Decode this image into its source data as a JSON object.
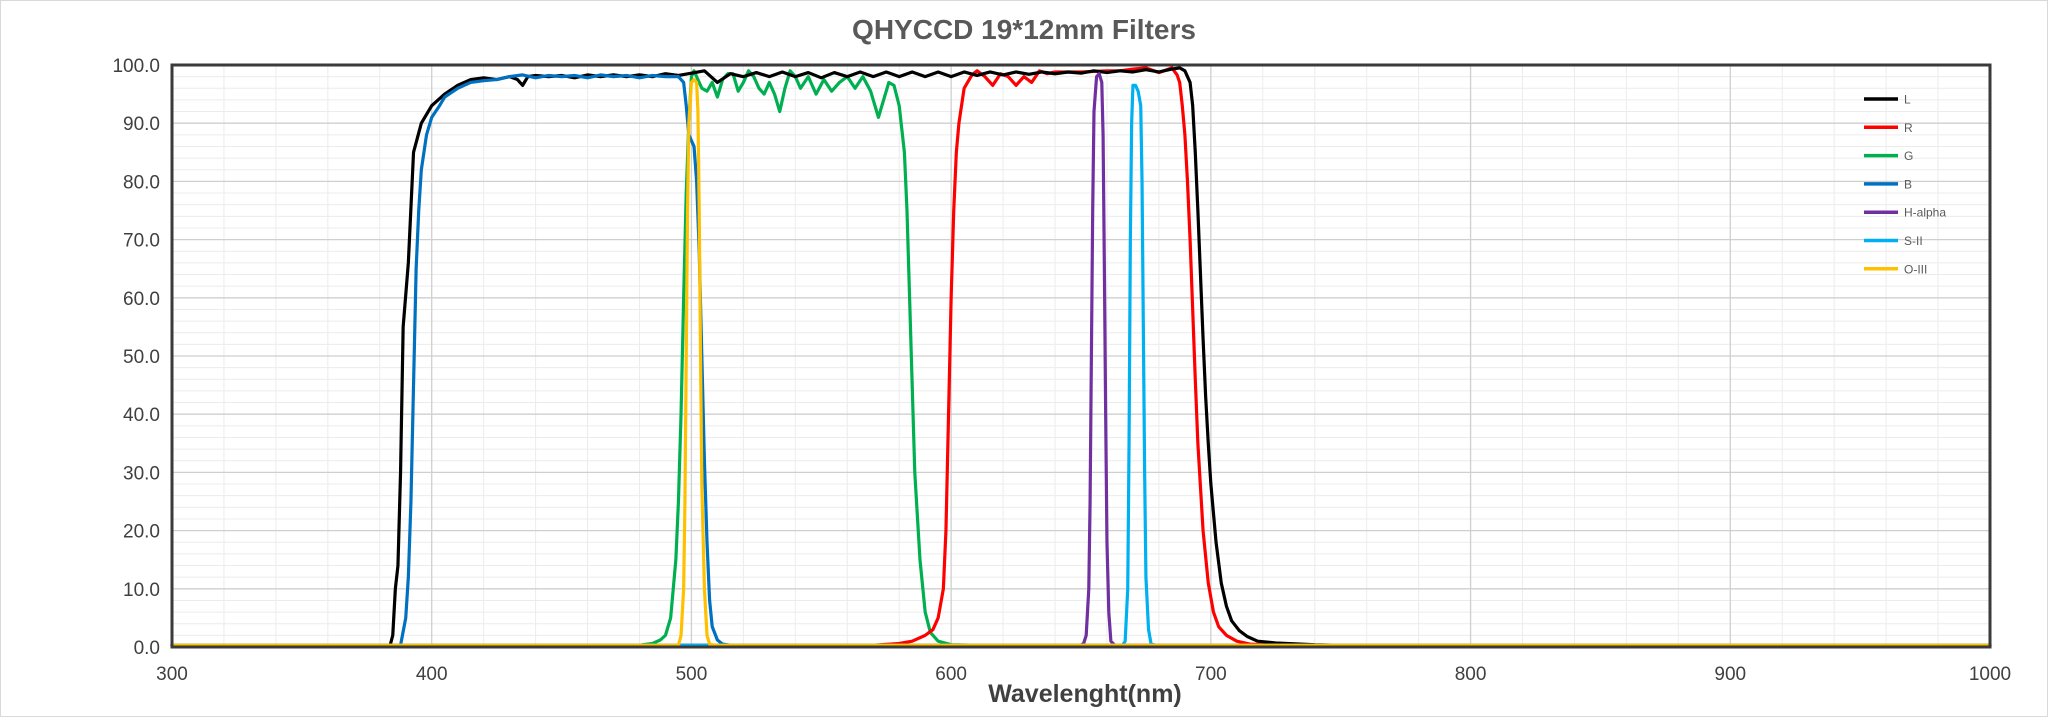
{
  "chart_data": {
    "type": "line",
    "title": "QHYCCD 19*12mm Filters",
    "xlabel": "Wavelenght(nm)",
    "ylabel": "",
    "xlim": [
      300,
      1000
    ],
    "ylim": [
      0,
      100
    ],
    "x_ticks": [
      "300",
      "400",
      "500",
      "600",
      "700",
      "800",
      "900",
      "1000"
    ],
    "y_ticks": [
      "0.0",
      "10.0",
      "20.0",
      "30.0",
      "40.0",
      "50.0",
      "60.0",
      "70.0",
      "80.0",
      "90.0",
      "100.0"
    ],
    "grid": "major and minor",
    "legend_position": "top-right",
    "series": [
      {
        "name": "L",
        "color": "#000000",
        "points": [
          [
            300,
            0.3
          ],
          [
            384,
            0.3
          ],
          [
            385,
            2
          ],
          [
            386,
            10
          ],
          [
            387,
            14
          ],
          [
            388,
            30
          ],
          [
            389,
            55
          ],
          [
            391,
            66
          ],
          [
            393,
            85
          ],
          [
            396,
            90
          ],
          [
            400,
            93
          ],
          [
            405,
            95
          ],
          [
            410,
            96.5
          ],
          [
            415,
            97.5
          ],
          [
            420,
            97.8
          ],
          [
            425,
            97.5
          ],
          [
            430,
            98
          ],
          [
            433,
            97.5
          ],
          [
            435,
            96.5
          ],
          [
            437,
            98
          ],
          [
            440,
            98.2
          ],
          [
            445,
            98
          ],
          [
            450,
            98.2
          ],
          [
            455,
            97.8
          ],
          [
            460,
            98.3
          ],
          [
            465,
            98
          ],
          [
            470,
            98.3
          ],
          [
            475,
            98
          ],
          [
            480,
            98.3
          ],
          [
            485,
            98
          ],
          [
            490,
            98.5
          ],
          [
            495,
            98.2
          ],
          [
            500,
            98.6
          ],
          [
            505,
            99
          ],
          [
            510,
            97
          ],
          [
            515,
            98.5
          ],
          [
            520,
            98
          ],
          [
            525,
            98.7
          ],
          [
            530,
            98
          ],
          [
            535,
            98.8
          ],
          [
            540,
            98
          ],
          [
            545,
            98.7
          ],
          [
            550,
            97.8
          ],
          [
            555,
            98.7
          ],
          [
            560,
            98
          ],
          [
            565,
            98.8
          ],
          [
            570,
            98
          ],
          [
            575,
            98.8
          ],
          [
            580,
            98
          ],
          [
            585,
            98.8
          ],
          [
            590,
            98
          ],
          [
            595,
            98.8
          ],
          [
            600,
            98
          ],
          [
            605,
            98.8
          ],
          [
            610,
            98.2
          ],
          [
            615,
            98.8
          ],
          [
            620,
            98.3
          ],
          [
            625,
            98.8
          ],
          [
            630,
            98.4
          ],
          [
            635,
            98.8
          ],
          [
            640,
            98.5
          ],
          [
            645,
            98.8
          ],
          [
            650,
            98.6
          ],
          [
            655,
            99
          ],
          [
            660,
            98.7
          ],
          [
            665,
            99
          ],
          [
            670,
            98.8
          ],
          [
            675,
            99.2
          ],
          [
            680,
            98.8
          ],
          [
            685,
            99.3
          ],
          [
            688,
            99.5
          ],
          [
            690,
            99
          ],
          [
            692,
            97
          ],
          [
            693,
            93
          ],
          [
            694,
            85
          ],
          [
            695,
            75
          ],
          [
            696,
            64
          ],
          [
            697,
            53
          ],
          [
            698,
            43
          ],
          [
            699,
            35
          ],
          [
            700,
            28
          ],
          [
            702,
            18
          ],
          [
            704,
            11
          ],
          [
            706,
            7
          ],
          [
            708,
            4.5
          ],
          [
            711,
            2.8
          ],
          [
            714,
            1.8
          ],
          [
            718,
            1
          ],
          [
            725,
            0.7
          ],
          [
            740,
            0.4
          ],
          [
            760,
            0.2
          ],
          [
            1000,
            0.2
          ]
        ]
      },
      {
        "name": "R",
        "color": "#ff0000",
        "points": [
          [
            300,
            0.3
          ],
          [
            570,
            0.3
          ],
          [
            580,
            0.6
          ],
          [
            585,
            1
          ],
          [
            590,
            2
          ],
          [
            593,
            3
          ],
          [
            595,
            5
          ],
          [
            597,
            10
          ],
          [
            598,
            20
          ],
          [
            599,
            40
          ],
          [
            600,
            60
          ],
          [
            601,
            75
          ],
          [
            602,
            85
          ],
          [
            603,
            90
          ],
          [
            605,
            96
          ],
          [
            608,
            98.3
          ],
          [
            610,
            99
          ],
          [
            613,
            98
          ],
          [
            616,
            96.5
          ],
          [
            619,
            98.5
          ],
          [
            622,
            98
          ],
          [
            625,
            96.5
          ],
          [
            628,
            98
          ],
          [
            631,
            97
          ],
          [
            634,
            99
          ],
          [
            637,
            98.5
          ],
          [
            640,
            98.8
          ],
          [
            650,
            98.8
          ],
          [
            660,
            99
          ],
          [
            665,
            99
          ],
          [
            670,
            99.3
          ],
          [
            675,
            99.5
          ],
          [
            680,
            98.7
          ],
          [
            685,
            99.5
          ],
          [
            687,
            98.3
          ],
          [
            688,
            97
          ],
          [
            689,
            93
          ],
          [
            690,
            88
          ],
          [
            691,
            80
          ],
          [
            692,
            70
          ],
          [
            693,
            58
          ],
          [
            694,
            46
          ],
          [
            695,
            35
          ],
          [
            697,
            20
          ],
          [
            699,
            11
          ],
          [
            701,
            6
          ],
          [
            703,
            3.5
          ],
          [
            706,
            2
          ],
          [
            710,
            1
          ],
          [
            715,
            0.5
          ],
          [
            725,
            0.3
          ],
          [
            1000,
            0.3
          ]
        ]
      },
      {
        "name": "G",
        "color": "#00b050",
        "points": [
          [
            300,
            0.3
          ],
          [
            480,
            0.3
          ],
          [
            485,
            0.6
          ],
          [
            488,
            1.2
          ],
          [
            490,
            2
          ],
          [
            492,
            5
          ],
          [
            494,
            15
          ],
          [
            495,
            25
          ],
          [
            496,
            40
          ],
          [
            497,
            60
          ],
          [
            498,
            78
          ],
          [
            499,
            90
          ],
          [
            500,
            98
          ],
          [
            501,
            99
          ],
          [
            502,
            98
          ],
          [
            504,
            96
          ],
          [
            506,
            95.5
          ],
          [
            508,
            97
          ],
          [
            510,
            94.5
          ],
          [
            512,
            97.5
          ],
          [
            514,
            98.5
          ],
          [
            516,
            98.5
          ],
          [
            518,
            95.5
          ],
          [
            520,
            97
          ],
          [
            522,
            99
          ],
          [
            524,
            98
          ],
          [
            526,
            96
          ],
          [
            528,
            95
          ],
          [
            530,
            97
          ],
          [
            532,
            95
          ],
          [
            534,
            92
          ],
          [
            536,
            96
          ],
          [
            538,
            99
          ],
          [
            540,
            98
          ],
          [
            542,
            96
          ],
          [
            545,
            98
          ],
          [
            548,
            95
          ],
          [
            551,
            97.5
          ],
          [
            554,
            95.5
          ],
          [
            557,
            97
          ],
          [
            560,
            98
          ],
          [
            563,
            96
          ],
          [
            566,
            98
          ],
          [
            569,
            95.5
          ],
          [
            572,
            91
          ],
          [
            574,
            94
          ],
          [
            576,
            97
          ],
          [
            578,
            96.5
          ],
          [
            580,
            93
          ],
          [
            582,
            85
          ],
          [
            583,
            75
          ],
          [
            584,
            60
          ],
          [
            585,
            45
          ],
          [
            586,
            30
          ],
          [
            588,
            15
          ],
          [
            590,
            6
          ],
          [
            592,
            2.5
          ],
          [
            595,
            1
          ],
          [
            600,
            0.4
          ],
          [
            610,
            0.3
          ],
          [
            1000,
            0.3
          ]
        ]
      },
      {
        "name": "B",
        "color": "#0070c0",
        "points": [
          [
            300,
            0.3
          ],
          [
            388,
            0.3
          ],
          [
            390,
            5
          ],
          [
            391,
            12
          ],
          [
            392,
            25
          ],
          [
            393,
            45
          ],
          [
            394,
            65
          ],
          [
            395,
            75
          ],
          [
            396,
            82
          ],
          [
            398,
            88
          ],
          [
            400,
            91
          ],
          [
            403,
            93
          ],
          [
            405,
            94.5
          ],
          [
            410,
            96
          ],
          [
            415,
            97
          ],
          [
            420,
            97.3
          ],
          [
            425,
            97.5
          ],
          [
            430,
            98
          ],
          [
            435,
            98.3
          ],
          [
            440,
            97.8
          ],
          [
            445,
            98.2
          ],
          [
            450,
            98
          ],
          [
            455,
            98.2
          ],
          [
            460,
            97.8
          ],
          [
            465,
            98.3
          ],
          [
            470,
            98
          ],
          [
            475,
            98.2
          ],
          [
            480,
            97.8
          ],
          [
            485,
            98.2
          ],
          [
            490,
            98
          ],
          [
            495,
            98
          ],
          [
            497,
            97
          ],
          [
            498,
            93
          ],
          [
            499,
            88
          ],
          [
            500,
            87
          ],
          [
            501,
            86
          ],
          [
            502,
            80
          ],
          [
            503,
            68
          ],
          [
            504,
            50
          ],
          [
            505,
            32
          ],
          [
            506,
            18
          ],
          [
            507,
            8
          ],
          [
            508,
            3.5
          ],
          [
            510,
            1.2
          ],
          [
            512,
            0.5
          ],
          [
            515,
            0.3
          ],
          [
            1000,
            0.3
          ]
        ]
      },
      {
        "name": "H-alpha",
        "color": "#7030a0",
        "points": [
          [
            300,
            0.3
          ],
          [
            650,
            0.3
          ],
          [
            651,
            0.6
          ],
          [
            652,
            2
          ],
          [
            653,
            10
          ],
          [
            653.5,
            25
          ],
          [
            654,
            50
          ],
          [
            654.5,
            75
          ],
          [
            655,
            92
          ],
          [
            656,
            98
          ],
          [
            657,
            98.5
          ],
          [
            658,
            97
          ],
          [
            658.5,
            88
          ],
          [
            659,
            65
          ],
          [
            659.5,
            40
          ],
          [
            660,
            18
          ],
          [
            660.7,
            6
          ],
          [
            661.5,
            1
          ],
          [
            663,
            0.3
          ],
          [
            1000,
            0.3
          ]
        ]
      },
      {
        "name": "S-II",
        "color": "#00b0f0",
        "points": [
          [
            300,
            0.3
          ],
          [
            666,
            0.3
          ],
          [
            667,
            1
          ],
          [
            668,
            10
          ],
          [
            668.5,
            35
          ],
          [
            669,
            70
          ],
          [
            669.5,
            90
          ],
          [
            670,
            96.5
          ],
          [
            671,
            96.5
          ],
          [
            672,
            95.5
          ],
          [
            673,
            93
          ],
          [
            673.5,
            80
          ],
          [
            674,
            55
          ],
          [
            674.5,
            30
          ],
          [
            675,
            12
          ],
          [
            676,
            3
          ],
          [
            677,
            0.5
          ],
          [
            679,
            0.3
          ],
          [
            1000,
            0.3
          ]
        ]
      },
      {
        "name": "O-III",
        "color": "#ffc000",
        "points": [
          [
            300,
            0.3
          ],
          [
            495,
            0.3
          ],
          [
            496,
            2
          ],
          [
            497,
            10
          ],
          [
            497.5,
            25
          ],
          [
            498,
            50
          ],
          [
            498.5,
            75
          ],
          [
            499,
            90
          ],
          [
            500,
            97
          ],
          [
            501,
            97.5
          ],
          [
            502,
            97
          ],
          [
            502.5,
            92
          ],
          [
            503,
            75
          ],
          [
            503.5,
            50
          ],
          [
            504,
            28
          ],
          [
            505,
            10
          ],
          [
            506,
            2
          ],
          [
            507,
            0.5
          ],
          [
            509,
            0.3
          ],
          [
            1000,
            0.3
          ]
        ]
      }
    ]
  }
}
